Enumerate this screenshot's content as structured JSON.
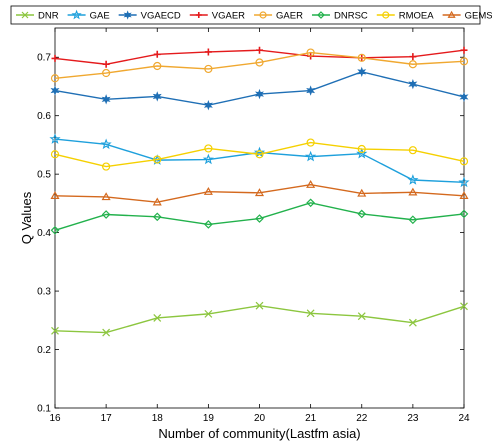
{
  "chart_data": {
    "type": "line",
    "xlabel": "Number of community(Lastfm asia)",
    "ylabel": "Q Values",
    "x": [
      16,
      17,
      18,
      19,
      20,
      21,
      22,
      23,
      24
    ],
    "xlim": [
      16,
      24
    ],
    "ylim": [
      0.1,
      0.75
    ],
    "yticks": [
      0.1,
      0.2,
      0.3,
      0.4,
      0.5,
      0.6,
      0.7
    ],
    "ytick_labels": [
      "0.1",
      "0.2",
      "0.3",
      "0.4",
      "0.5",
      "0.6",
      "0.7"
    ],
    "grid": false,
    "legend_position": "top",
    "series": [
      {
        "name": "DNR",
        "color": "#8cc63f",
        "marker": "x",
        "values": [
          0.232,
          0.229,
          0.254,
          0.261,
          0.275,
          0.262,
          0.257,
          0.246,
          0.274
        ]
      },
      {
        "name": "GAE",
        "color": "#1ea0dc",
        "marker": "star",
        "values": [
          0.56,
          0.551,
          0.524,
          0.525,
          0.537,
          0.53,
          0.535,
          0.49,
          0.486
        ]
      },
      {
        "name": "VGAECD",
        "color": "#1f6fb5",
        "marker": "star6",
        "values": [
          0.643,
          0.628,
          0.633,
          0.618,
          0.637,
          0.643,
          0.675,
          0.654,
          0.632
        ]
      },
      {
        "name": "VGAER",
        "color": "#e41a1c",
        "marker": "plus",
        "values": [
          0.698,
          0.688,
          0.705,
          0.709,
          0.712,
          0.702,
          0.699,
          0.701,
          0.712
        ]
      },
      {
        "name": "GAER",
        "color": "#f0a830",
        "marker": "circle",
        "values": [
          0.664,
          0.673,
          0.685,
          0.68,
          0.691,
          0.708,
          0.699,
          0.688,
          0.693
        ]
      },
      {
        "name": "DNRSC",
        "color": "#22b14c",
        "marker": "diamond",
        "values": [
          0.404,
          0.431,
          0.427,
          0.414,
          0.424,
          0.451,
          0.432,
          0.422,
          0.432
        ]
      },
      {
        "name": "RMOEA",
        "color": "#f5d000",
        "marker": "circle",
        "values": [
          0.534,
          0.513,
          0.525,
          0.544,
          0.534,
          0.554,
          0.543,
          0.541,
          0.522
        ]
      },
      {
        "name": "GEMSEC",
        "color": "#d4691e",
        "marker": "triangle",
        "values": [
          0.463,
          0.461,
          0.452,
          0.47,
          0.468,
          0.482,
          0.467,
          0.469,
          0.463
        ]
      }
    ]
  }
}
